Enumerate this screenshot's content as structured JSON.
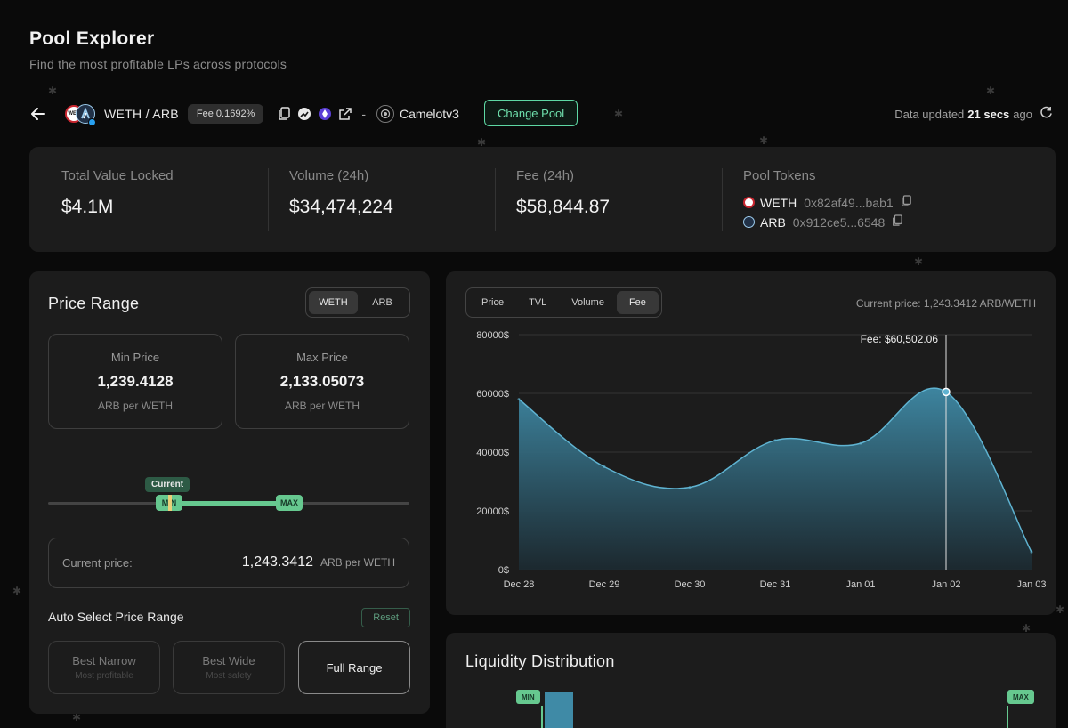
{
  "header": {
    "title": "Pool Explorer",
    "subtitle": "Find the most profitable LPs across protocols"
  },
  "pool": {
    "token0_icon_text": "WET",
    "pair": "WETH / ARB",
    "fee_badge": "Fee 0.1692%",
    "separator": "-",
    "protocol": "Camelotv3",
    "change_pool": "Change Pool",
    "updated_prefix": "Data updated",
    "updated_value": "21 secs",
    "updated_suffix": "ago"
  },
  "stats": {
    "tvl_label": "Total Value Locked",
    "tvl_value": "$4.1M",
    "volume_label": "Volume (24h)",
    "volume_value": "$34,474,224",
    "fee_label": "Fee (24h)",
    "fee_value": "$58,844.87",
    "tokens_label": "Pool Tokens",
    "tokens": [
      {
        "symbol": "WETH",
        "address": "0x82af49...bab1"
      },
      {
        "symbol": "ARB",
        "address": "0x912ce5...6548"
      }
    ]
  },
  "price_range": {
    "title": "Price Range",
    "toggle": [
      "WETH",
      "ARB"
    ],
    "min_label": "Min Price",
    "min_value": "1,239.4128",
    "min_unit": "ARB per WETH",
    "max_label": "Max Price",
    "max_value": "2,133.05073",
    "max_unit": "ARB per WETH",
    "current_tag": "Current",
    "min_handle": "MIN",
    "max_handle": "MAX",
    "current_label": "Current price:",
    "current_value": "1,243.3412",
    "current_unit": "ARB per WETH",
    "auto_title": "Auto Select Price Range",
    "reset": "Reset",
    "options": [
      {
        "label": "Best Narrow",
        "sub": "Most profitable"
      },
      {
        "label": "Best Wide",
        "sub": "Most safety"
      },
      {
        "label": "Full Range",
        "sub": ""
      }
    ]
  },
  "chart_panel": {
    "tabs": [
      "Price",
      "TVL",
      "Volume",
      "Fee"
    ],
    "active_tab": "Fee",
    "current_price": "Current price: 1,243.3412 ARB/WETH",
    "tooltip": "Fee: $60,502.06"
  },
  "chart_data": {
    "type": "area",
    "x": [
      "Dec 28",
      "Dec 29",
      "Dec 30",
      "Dec 31",
      "Jan 01",
      "Jan 02",
      "Jan 03"
    ],
    "values": [
      58000,
      35000,
      28000,
      44000,
      43000,
      60502.06,
      6000
    ],
    "ylim": [
      0,
      80000
    ],
    "yticks": [
      "0$",
      "20000$",
      "40000$",
      "60000$",
      "80000$"
    ],
    "highlight_index": 5,
    "grid": true,
    "accent": "#5fb3d1"
  },
  "liquidity": {
    "title": "Liquidity Distribution",
    "min_tag": "MIN",
    "max_tag": "MAX"
  },
  "colors": {
    "accent_green": "#66c88f",
    "change_pool_border": "#5ed8a4"
  }
}
